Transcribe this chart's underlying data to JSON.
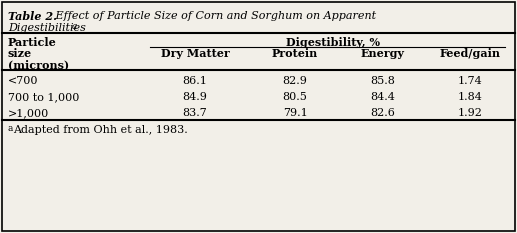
{
  "title_bold": "Table 2.",
  "title_rest": " Effect of Particle Size of Corn and Sorghum on Apparent",
  "title_line2": "Digestibilities",
  "title_super": "a",
  "col_header_group": "Digestibility, %",
  "col_headers": [
    "Dry Matter",
    "Protein",
    "Energy",
    "Feed/gain"
  ],
  "row_labels": [
    "<700",
    "700 to 1,000",
    ">1,000"
  ],
  "data": [
    [
      "86.1",
      "82.9",
      "85.8",
      "1.74"
    ],
    [
      "84.9",
      "80.5",
      "84.4",
      "1.84"
    ],
    [
      "83.7",
      "79.1",
      "82.6",
      "1.92"
    ]
  ],
  "footnote_super": "a",
  "footnote_rest": "Adapted from Ohh et al., 1983.",
  "bg_color": "#f2efe8",
  "border_color": "#000000",
  "text_color": "#000000",
  "figsize": [
    5.17,
    2.33
  ],
  "dpi": 100
}
